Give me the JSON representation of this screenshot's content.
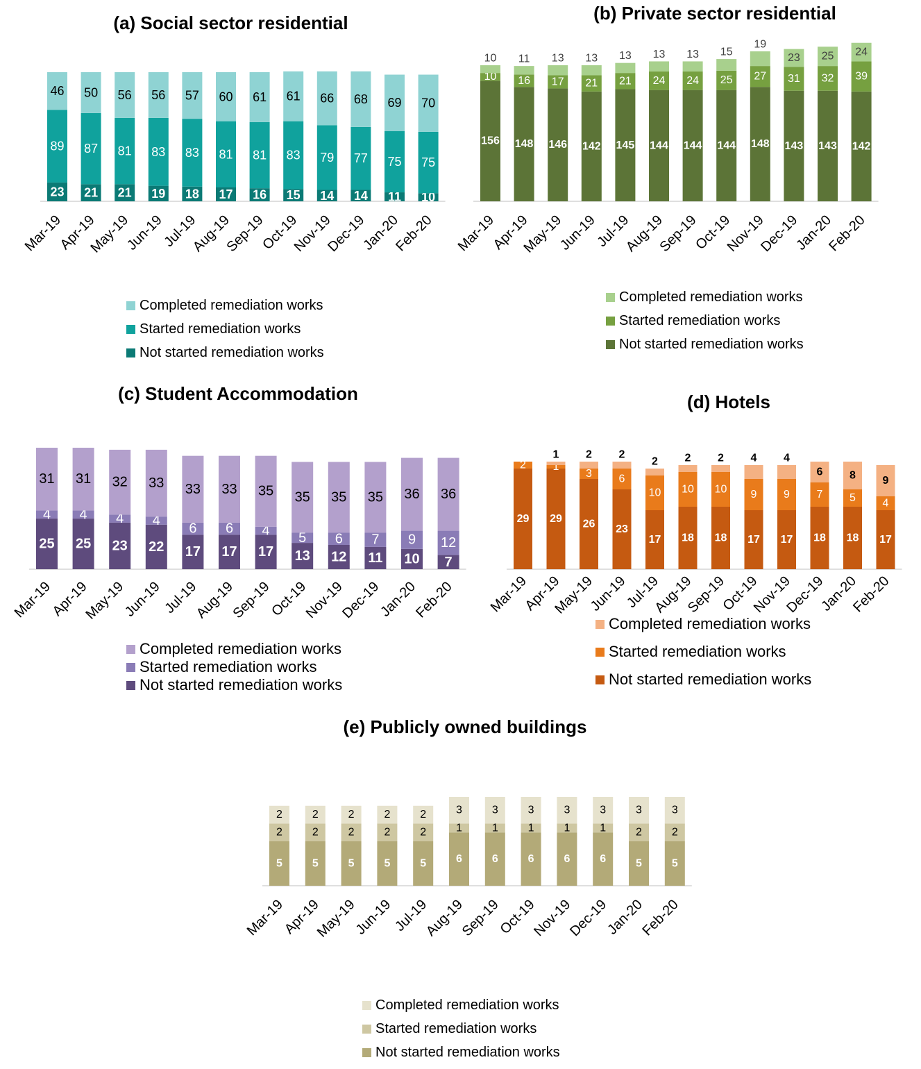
{
  "charts": [
    {
      "id": "a",
      "title": "(a) Social sector residential",
      "chart_data": {
        "type": "bar",
        "stacked": true,
        "categories": [
          "Mar-19",
          "Apr-19",
          "May-19",
          "Jun-19",
          "Jul-19",
          "Aug-19",
          "Sep-19",
          "Oct-19",
          "Nov-19",
          "Dec-19",
          "Jan-20",
          "Feb-20"
        ],
        "series": [
          {
            "name": "Not started remediation works",
            "color": "#0b7a75",
            "values": [
              23,
              21,
              21,
              19,
              18,
              17,
              16,
              15,
              14,
              14,
              11,
              10
            ]
          },
          {
            "name": "Started remediation works",
            "color": "#10a29d",
            "values": [
              89,
              87,
              81,
              83,
              83,
              81,
              81,
              83,
              79,
              77,
              75,
              75
            ]
          },
          {
            "name": "Completed remediation works",
            "color": "#8fd3d3",
            "values": [
              46,
              50,
              56,
              56,
              57,
              60,
              61,
              61,
              66,
              68,
              69,
              70
            ]
          }
        ],
        "legend_position": "bottom",
        "grid": false
      }
    },
    {
      "id": "b",
      "title": "(b) Private sector residential",
      "chart_data": {
        "type": "bar",
        "stacked": true,
        "categories": [
          "Mar-19",
          "Apr-19",
          "May-19",
          "Jun-19",
          "Jul-19",
          "Aug-19",
          "Sep-19",
          "Oct-19",
          "Nov-19",
          "Dec-19",
          "Jan-20",
          "Feb-20"
        ],
        "series": [
          {
            "name": "Not started remediation works",
            "color": "#5c7437",
            "values": [
              156,
              148,
              146,
              142,
              145,
              144,
              144,
              144,
              148,
              143,
              143,
              142
            ]
          },
          {
            "name": "Started remediation works",
            "color": "#76a040",
            "values": [
              10,
              16,
              17,
              21,
              21,
              24,
              24,
              25,
              27,
              31,
              32,
              39
            ]
          },
          {
            "name": "Completed remediation works",
            "color": "#a8d08d",
            "values": [
              10,
              11,
              13,
              13,
              13,
              13,
              13,
              15,
              19,
              23,
              25,
              24
            ]
          }
        ],
        "legend_position": "bottom",
        "grid": false
      }
    },
    {
      "id": "c",
      "title": "(c) Student Accommodation",
      "chart_data": {
        "type": "bar",
        "stacked": true,
        "categories": [
          "Mar-19",
          "Apr-19",
          "May-19",
          "Jun-19",
          "Jul-19",
          "Aug-19",
          "Sep-19",
          "Oct-19",
          "Nov-19",
          "Dec-19",
          "Jan-20",
          "Feb-20"
        ],
        "series": [
          {
            "name": "Not started remediation works",
            "color": "#5e4b7d",
            "values": [
              25,
              25,
              23,
              22,
              17,
              17,
              17,
              13,
              12,
              11,
              10,
              7
            ]
          },
          {
            "name": "Started remediation works",
            "color": "#8a7cb6",
            "values": [
              4,
              4,
              4,
              4,
              6,
              6,
              4,
              5,
              6,
              7,
              9,
              12
            ]
          },
          {
            "name": "Completed remediation works",
            "color": "#b3a0cc",
            "values": [
              31,
              31,
              32,
              33,
              33,
              33,
              35,
              35,
              35,
              35,
              36,
              36
            ]
          }
        ],
        "legend_position": "bottom",
        "grid": false
      }
    },
    {
      "id": "d",
      "title": "(d) Hotels",
      "chart_data": {
        "type": "bar",
        "stacked": true,
        "categories": [
          "Mar-19",
          "Apr-19",
          "May-19",
          "Jun-19",
          "Jul-19",
          "Aug-19",
          "Sep-19",
          "Oct-19",
          "Nov-19",
          "Dec-19",
          "Jan-20",
          "Feb-20"
        ],
        "series": [
          {
            "name": "Not started remediation works",
            "color": "#c55a11",
            "values": [
              29,
              29,
              26,
              23,
              17,
              18,
              18,
              17,
              17,
              18,
              18,
              17
            ]
          },
          {
            "name": "Started remediation works",
            "color": "#e97b1b",
            "values": [
              2,
              1,
              3,
              6,
              10,
              10,
              10,
              9,
              9,
              7,
              5,
              4
            ]
          },
          {
            "name": "Completed remediation works",
            "color": "#f4b183",
            "values": [
              0,
              1,
              2,
              2,
              2,
              2,
              2,
              4,
              4,
              6,
              8,
              9
            ]
          }
        ],
        "legend_position": "bottom",
        "grid": false
      }
    },
    {
      "id": "e",
      "title": "(e) Publicly owned buildings",
      "chart_data": {
        "type": "bar",
        "stacked": true,
        "categories": [
          "Mar-19",
          "Apr-19",
          "May-19",
          "Jun-19",
          "Jul-19",
          "Aug-19",
          "Sep-19",
          "Oct-19",
          "Nov-19",
          "Dec-19",
          "Jan-20",
          "Feb-20"
        ],
        "series": [
          {
            "name": "Not started remediation works",
            "color": "#b3aa78",
            "values": [
              5,
              5,
              5,
              5,
              5,
              6,
              6,
              6,
              6,
              6,
              5,
              5
            ]
          },
          {
            "name": "Started remediation works",
            "color": "#cec7a2",
            "values": [
              2,
              2,
              2,
              2,
              2,
              1,
              1,
              1,
              1,
              1,
              2,
              2
            ]
          },
          {
            "name": "Completed remediation works",
            "color": "#e6e2cd",
            "values": [
              2,
              2,
              2,
              2,
              2,
              3,
              3,
              3,
              3,
              3,
              3,
              3
            ]
          }
        ],
        "legend_position": "bottom",
        "grid": false
      }
    }
  ]
}
